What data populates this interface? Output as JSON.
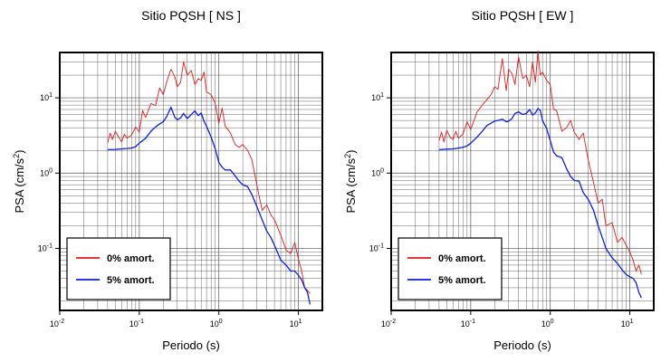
{
  "chart_data": [
    {
      "type": "line",
      "title": "Sitio PQSH [ NS ]",
      "xlabel": "Periodo (s)",
      "ylabel_main": "PSA (cm/s",
      "ylabel_sup": "2",
      "ylabel_close": ")",
      "xscale": "log",
      "yscale": "log",
      "xlim": [
        0.01,
        20
      ],
      "ylim": [
        0.015,
        40
      ],
      "grid": true,
      "legend_position": "bottom-left",
      "x_ticks": [
        {
          "base": "10",
          "exp": "-2",
          "value": 0.01
        },
        {
          "base": "10",
          "exp": "-1",
          "value": 0.1
        },
        {
          "base": "10",
          "exp": "0",
          "value": 1
        },
        {
          "base": "10",
          "exp": "1",
          "value": 10
        }
      ],
      "y_ticks": [
        {
          "base": "10",
          "exp": "-1",
          "value": 0.1
        },
        {
          "base": "10",
          "exp": "0",
          "value": 1
        },
        {
          "base": "10",
          "exp": "1",
          "value": 10
        }
      ],
      "series": [
        {
          "name": "0% amort.",
          "color": "#e41a1c",
          "x": [
            0.04,
            0.043,
            0.046,
            0.05,
            0.055,
            0.06,
            0.065,
            0.07,
            0.08,
            0.09,
            0.1,
            0.11,
            0.12,
            0.14,
            0.16,
            0.18,
            0.2,
            0.22,
            0.25,
            0.28,
            0.3,
            0.33,
            0.36,
            0.4,
            0.45,
            0.5,
            0.55,
            0.6,
            0.65,
            0.7,
            0.8,
            0.9,
            1.0,
            1.1,
            1.2,
            1.4,
            1.6,
            1.8,
            2.0,
            2.3,
            2.6,
            3.0,
            3.5,
            4.0,
            4.5,
            5.0,
            6.0,
            7.0,
            8.0,
            9.0,
            10.0,
            11.0,
            12.0,
            13.0,
            14.0
          ],
          "values": [
            2.5,
            3.4,
            2.8,
            3.6,
            3.0,
            2.6,
            3.3,
            2.9,
            3.2,
            4.1,
            3.5,
            6.8,
            5.5,
            8.4,
            7.9,
            13.5,
            11.0,
            16.0,
            24.0,
            19.0,
            14.0,
            16.0,
            30.0,
            20.0,
            23.0,
            15.0,
            18.0,
            17.0,
            22.0,
            12.0,
            11.0,
            8.5,
            4.6,
            7.3,
            4.2,
            3.4,
            2.4,
            2.2,
            2.4,
            2.0,
            1.5,
            0.7,
            0.32,
            0.38,
            0.28,
            0.24,
            0.15,
            0.095,
            0.085,
            0.12,
            0.072,
            0.05,
            0.03,
            0.028,
            0.025
          ]
        },
        {
          "name": "5% amort.",
          "color": "#0b1ee8",
          "x": [
            0.04,
            0.05,
            0.06,
            0.07,
            0.08,
            0.09,
            0.1,
            0.12,
            0.14,
            0.16,
            0.18,
            0.2,
            0.22,
            0.25,
            0.28,
            0.3,
            0.33,
            0.36,
            0.4,
            0.45,
            0.5,
            0.55,
            0.6,
            0.65,
            0.7,
            0.8,
            0.9,
            1.0,
            1.1,
            1.2,
            1.4,
            1.6,
            1.8,
            2.0,
            2.3,
            2.6,
            3.0,
            3.5,
            4.0,
            4.5,
            5.0,
            6.0,
            7.0,
            8.0,
            9.0,
            10.0,
            11.0,
            12.0,
            13.0,
            14.0
          ],
          "values": [
            2.05,
            2.06,
            2.1,
            2.12,
            2.15,
            2.25,
            2.5,
            2.9,
            3.6,
            4.1,
            4.5,
            4.8,
            5.6,
            7.5,
            5.5,
            5.1,
            5.4,
            6.2,
            5.3,
            6.0,
            6.7,
            5.8,
            6.3,
            4.9,
            4.2,
            3.0,
            2.1,
            1.38,
            1.2,
            1.1,
            1.1,
            0.92,
            0.78,
            0.7,
            0.66,
            0.52,
            0.36,
            0.24,
            0.17,
            0.14,
            0.11,
            0.07,
            0.06,
            0.05,
            0.05,
            0.044,
            0.038,
            0.03,
            0.026,
            0.018
          ]
        }
      ]
    },
    {
      "type": "line",
      "title": "Sitio PQSH [ EW ]",
      "xlabel": "Periodo (s)",
      "ylabel_main": "PSA (cm/s",
      "ylabel_sup": "2",
      "ylabel_close": ")",
      "xscale": "log",
      "yscale": "log",
      "xlim": [
        0.01,
        20
      ],
      "ylim": [
        0.015,
        40
      ],
      "grid": true,
      "legend_position": "bottom-left",
      "x_ticks": [
        {
          "base": "10",
          "exp": "-2",
          "value": 0.01
        },
        {
          "base": "10",
          "exp": "-1",
          "value": 0.1
        },
        {
          "base": "10",
          "exp": "0",
          "value": 1
        },
        {
          "base": "10",
          "exp": "1",
          "value": 10
        }
      ],
      "y_ticks": [
        {
          "base": "10",
          "exp": "-1",
          "value": 0.1
        },
        {
          "base": "10",
          "exp": "0",
          "value": 1
        },
        {
          "base": "10",
          "exp": "1",
          "value": 10
        }
      ],
      "series": [
        {
          "name": "0% amort.",
          "color": "#e41a1c",
          "x": [
            0.04,
            0.043,
            0.046,
            0.05,
            0.055,
            0.06,
            0.065,
            0.07,
            0.08,
            0.09,
            0.1,
            0.11,
            0.12,
            0.14,
            0.16,
            0.18,
            0.2,
            0.22,
            0.25,
            0.28,
            0.3,
            0.33,
            0.36,
            0.4,
            0.45,
            0.5,
            0.55,
            0.6,
            0.65,
            0.7,
            0.75,
            0.8,
            0.9,
            1.0,
            1.1,
            1.2,
            1.4,
            1.6,
            1.8,
            2.0,
            2.3,
            2.6,
            3.0,
            3.5,
            4.0,
            4.5,
            5.0,
            6.0,
            7.0,
            8.0,
            9.0,
            10.0,
            11.0,
            12.0,
            13.0,
            14.0
          ],
          "values": [
            2.7,
            3.5,
            2.6,
            3.7,
            3.0,
            2.8,
            3.6,
            2.9,
            3.3,
            4.8,
            3.8,
            5.0,
            6.5,
            8.0,
            9.5,
            11.0,
            14.0,
            13.0,
            33.0,
            12.5,
            24.0,
            21.0,
            15.0,
            35.0,
            18.0,
            20.0,
            14.0,
            30.0,
            16.0,
            42.0,
            20.0,
            22.0,
            17.0,
            15.0,
            7.0,
            6.8,
            3.6,
            4.0,
            5.0,
            3.5,
            2.8,
            3.4,
            1.5,
            0.75,
            0.4,
            0.45,
            0.2,
            0.22,
            0.12,
            0.14,
            0.11,
            0.09,
            0.07,
            0.05,
            0.06,
            0.045
          ]
        },
        {
          "name": "5% amort.",
          "color": "#0b1ee8",
          "x": [
            0.04,
            0.05,
            0.06,
            0.07,
            0.08,
            0.09,
            0.1,
            0.12,
            0.14,
            0.16,
            0.18,
            0.2,
            0.22,
            0.25,
            0.28,
            0.3,
            0.33,
            0.36,
            0.4,
            0.45,
            0.5,
            0.55,
            0.6,
            0.65,
            0.7,
            0.75,
            0.8,
            0.9,
            1.0,
            1.1,
            1.2,
            1.4,
            1.6,
            1.8,
            2.0,
            2.3,
            2.6,
            3.0,
            3.5,
            4.0,
            4.5,
            5.0,
            6.0,
            7.0,
            8.0,
            9.0,
            10.0,
            11.0,
            12.0,
            13.0,
            14.0
          ],
          "values": [
            2.05,
            2.08,
            2.1,
            2.15,
            2.2,
            2.3,
            2.5,
            3.0,
            3.6,
            4.3,
            4.6,
            4.9,
            5.0,
            5.2,
            4.8,
            4.9,
            5.3,
            6.2,
            6.5,
            6.0,
            6.2,
            7.0,
            5.9,
            6.3,
            7.2,
            6.8,
            5.0,
            3.9,
            2.7,
            1.9,
            1.7,
            1.6,
            1.15,
            0.9,
            0.8,
            0.78,
            0.55,
            0.45,
            0.32,
            0.2,
            0.14,
            0.1,
            0.075,
            0.063,
            0.052,
            0.045,
            0.042,
            0.04,
            0.035,
            0.026,
            0.022
          ]
        }
      ]
    }
  ]
}
